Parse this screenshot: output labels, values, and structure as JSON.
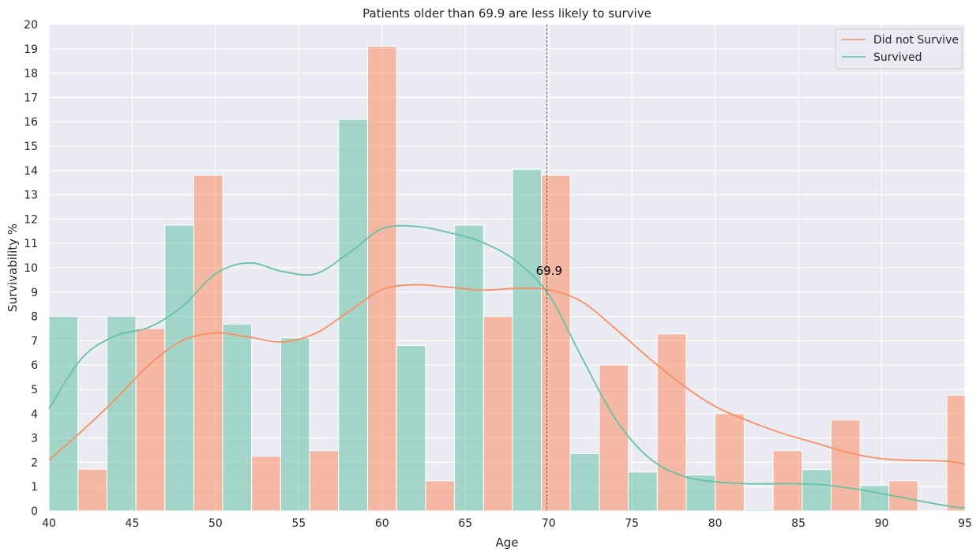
{
  "chart_data": {
    "type": "bar",
    "title": "Patients older than 69.9 are less likely to survive",
    "xlabel": "Age",
    "ylabel": "Survivability %",
    "xlim": [
      40,
      95
    ],
    "ylim": [
      0,
      20
    ],
    "xticks": [
      40,
      45,
      50,
      55,
      60,
      65,
      70,
      75,
      80,
      85,
      90,
      95
    ],
    "yticks": [
      0,
      1,
      2,
      3,
      4,
      5,
      6,
      7,
      8,
      9,
      10,
      11,
      12,
      13,
      14,
      15,
      16,
      17,
      18,
      19,
      20
    ],
    "grid": true,
    "legend_position": "top-right",
    "background": "#eaeaf2",
    "annotation": {
      "x": 69.9,
      "y": 9.7,
      "text": "69.9",
      "vline_x": 69.9
    },
    "series": [
      {
        "name": "Did not Survive",
        "color": "#fc8d62",
        "bar_opacity": 0.55,
        "bins": [
          {
            "x0": 41.74,
            "x1": 43.48,
            "value": 1.72
          },
          {
            "x0": 45.22,
            "x1": 46.96,
            "value": 7.5
          },
          {
            "x0": 48.7,
            "x1": 50.43,
            "value": 13.8
          },
          {
            "x0": 52.17,
            "x1": 53.91,
            "value": 2.25
          },
          {
            "x0": 55.65,
            "x1": 57.39,
            "value": 2.48
          },
          {
            "x0": 59.13,
            "x1": 60.87,
            "value": 19.1
          },
          {
            "x0": 62.61,
            "x1": 64.35,
            "value": 1.24
          },
          {
            "x0": 66.09,
            "x1": 67.83,
            "value": 8.0
          },
          {
            "x0": 69.57,
            "x1": 71.3,
            "value": 13.8
          },
          {
            "x0": 73.04,
            "x1": 74.78,
            "value": 6.0
          },
          {
            "x0": 76.52,
            "x1": 78.26,
            "value": 7.28
          },
          {
            "x0": 80.0,
            "x1": 81.74,
            "value": 4.0
          },
          {
            "x0": 83.48,
            "x1": 85.22,
            "value": 2.48
          },
          {
            "x0": 86.96,
            "x1": 88.7,
            "value": 3.74
          },
          {
            "x0": 90.43,
            "x1": 92.17,
            "value": 1.24
          },
          {
            "x0": 93.91,
            "x1": 95.65,
            "value": 4.76
          }
        ],
        "kde": [
          [
            40,
            2.1
          ],
          [
            42,
            3.3
          ],
          [
            44,
            4.6
          ],
          [
            46,
            6.0
          ],
          [
            48,
            7.0
          ],
          [
            50,
            7.32
          ],
          [
            52,
            7.15
          ],
          [
            54,
            6.95
          ],
          [
            56,
            7.3
          ],
          [
            58,
            8.2
          ],
          [
            60,
            9.1
          ],
          [
            62,
            9.3
          ],
          [
            64,
            9.2
          ],
          [
            66,
            9.08
          ],
          [
            68,
            9.15
          ],
          [
            70,
            9.1
          ],
          [
            72,
            8.6
          ],
          [
            74,
            7.5
          ],
          [
            76,
            6.3
          ],
          [
            78,
            5.2
          ],
          [
            80,
            4.3
          ],
          [
            82,
            3.7
          ],
          [
            84,
            3.2
          ],
          [
            86,
            2.8
          ],
          [
            88,
            2.4
          ],
          [
            90,
            2.15
          ],
          [
            92,
            2.08
          ],
          [
            94,
            2.04
          ],
          [
            95,
            1.93
          ]
        ]
      },
      {
        "name": "Survived",
        "color": "#66c2a5",
        "bar_opacity": 0.55,
        "bins": [
          {
            "x0": 40.0,
            "x1": 41.74,
            "value": 8.0
          },
          {
            "x0": 43.48,
            "x1": 45.22,
            "value": 8.0
          },
          {
            "x0": 46.96,
            "x1": 48.7,
            "value": 11.75
          },
          {
            "x0": 50.43,
            "x1": 52.17,
            "value": 7.68
          },
          {
            "x0": 53.91,
            "x1": 55.65,
            "value": 7.12
          },
          {
            "x0": 57.39,
            "x1": 59.13,
            "value": 16.1
          },
          {
            "x0": 60.87,
            "x1": 62.61,
            "value": 6.8
          },
          {
            "x0": 64.35,
            "x1": 66.09,
            "value": 11.75
          },
          {
            "x0": 67.83,
            "x1": 69.57,
            "value": 14.05
          },
          {
            "x0": 71.3,
            "x1": 73.04,
            "value": 2.36
          },
          {
            "x0": 74.78,
            "x1": 76.52,
            "value": 1.6
          },
          {
            "x0": 78.26,
            "x1": 80.0,
            "value": 1.48
          },
          {
            "x0": 81.74,
            "x1": 83.48,
            "value": 0.06
          },
          {
            "x0": 85.22,
            "x1": 86.96,
            "value": 1.7
          },
          {
            "x0": 88.7,
            "x1": 90.43,
            "value": 1.05
          }
        ],
        "kde": [
          [
            40,
            4.2
          ],
          [
            42,
            6.3
          ],
          [
            44,
            7.2
          ],
          [
            46,
            7.55
          ],
          [
            48,
            8.4
          ],
          [
            50,
            9.75
          ],
          [
            52,
            10.2
          ],
          [
            54,
            9.85
          ],
          [
            56,
            9.75
          ],
          [
            58,
            10.6
          ],
          [
            60,
            11.6
          ],
          [
            62,
            11.7
          ],
          [
            64,
            11.45
          ],
          [
            66,
            11.05
          ],
          [
            68,
            10.3
          ],
          [
            70,
            8.9
          ],
          [
            72,
            6.3
          ],
          [
            74,
            3.8
          ],
          [
            76,
            2.2
          ],
          [
            78,
            1.45
          ],
          [
            80,
            1.2
          ],
          [
            82,
            1.12
          ],
          [
            84,
            1.12
          ],
          [
            86,
            1.1
          ],
          [
            88,
            0.95
          ],
          [
            90,
            0.72
          ],
          [
            92,
            0.45
          ],
          [
            94,
            0.2
          ],
          [
            95,
            0.12
          ]
        ]
      }
    ]
  }
}
